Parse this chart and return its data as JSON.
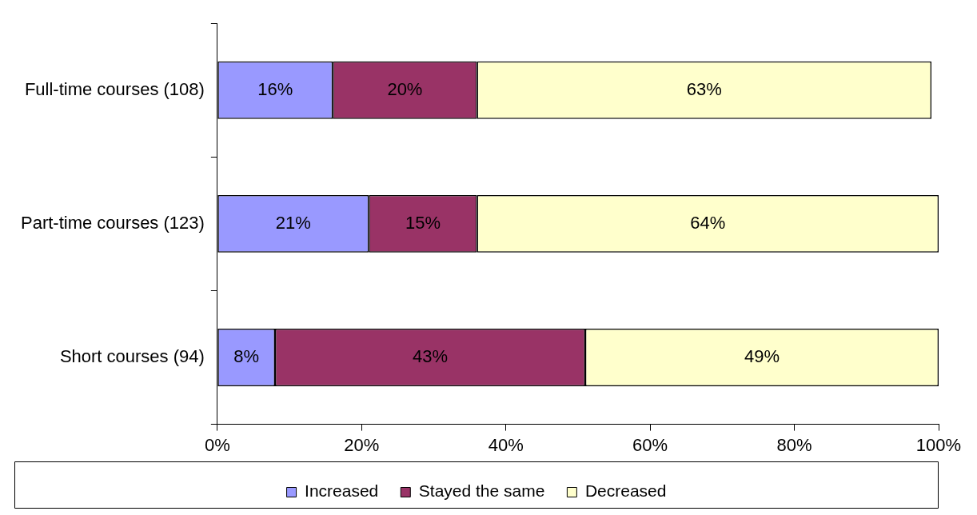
{
  "chart_data": {
    "type": "bar",
    "orientation": "horizontal",
    "stacked": true,
    "categories": [
      "Full-time courses (108)",
      "Part-time courses (123)",
      "Short courses (94)"
    ],
    "series": [
      {
        "name": "Increased",
        "color": "#9999ff",
        "values": [
          16,
          21,
          8
        ],
        "value_labels": [
          "16%",
          "21%",
          "8%"
        ]
      },
      {
        "name": "Stayed the same",
        "color": "#993366",
        "values": [
          20,
          15,
          43
        ],
        "value_labels": [
          "20%",
          "15%",
          "43%"
        ]
      },
      {
        "name": "Decreased",
        "color": "#ffffcc",
        "values": [
          63,
          64,
          49
        ],
        "value_labels": [
          "63%",
          "64%",
          "49%"
        ]
      }
    ],
    "xlim": [
      0,
      100
    ],
    "xticks": [
      {
        "value": 0,
        "label": "0%"
      },
      {
        "value": 20,
        "label": "20%"
      },
      {
        "value": 40,
        "label": "40%"
      },
      {
        "value": 60,
        "label": "60%"
      },
      {
        "value": 80,
        "label": "80%"
      },
      {
        "value": 100,
        "label": "100%"
      }
    ],
    "grid": false,
    "legend": "bottom"
  }
}
